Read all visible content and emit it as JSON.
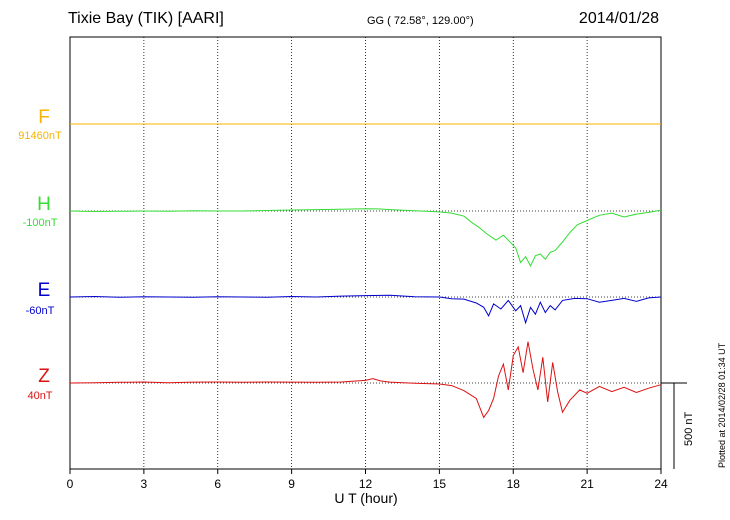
{
  "header": {
    "station": "Tixie Bay (TIK)  [AARI]",
    "coords": "GG ( 72.58°, 129.00°)",
    "date": "2014/01/28"
  },
  "plotted_note": "Plotted at 2014/02/28 01:34 UT",
  "chart_data": {
    "type": "line",
    "xlabel": "U T (hour)",
    "xlim": [
      0,
      24
    ],
    "xticks": [
      0,
      3,
      6,
      9,
      12,
      15,
      18,
      21,
      24
    ],
    "grid": true,
    "scale_bar": {
      "label": "500 nT",
      "value_nT": 500
    },
    "series": [
      {
        "name": "F",
        "baseline": "91460nT",
        "color": "#f5b400",
        "x": [
          0,
          6,
          12,
          18,
          24
        ],
        "y": [
          0,
          0,
          0,
          0,
          0
        ]
      },
      {
        "name": "H",
        "baseline": "-100nT",
        "color": "#33dd33",
        "x": [
          0,
          1,
          2,
          3,
          4,
          5,
          6,
          7,
          8,
          9,
          10,
          11,
          12,
          12.5,
          13,
          14,
          15,
          15.5,
          16,
          16.3,
          16.6,
          16.9,
          17.1,
          17.3,
          17.6,
          17.9,
          18.1,
          18.3,
          18.5,
          18.7,
          18.9,
          19.1,
          19.3,
          19.5,
          19.7,
          20,
          20.3,
          20.6,
          21,
          21.5,
          22,
          22.5,
          23,
          23.5,
          24
        ],
        "y": [
          0,
          -3,
          -2,
          0,
          -1,
          2,
          0,
          0,
          3,
          6,
          8,
          10,
          13,
          12,
          8,
          2,
          -5,
          -12,
          -30,
          -65,
          -95,
          -130,
          -150,
          -170,
          -140,
          -185,
          -215,
          -300,
          -265,
          -320,
          -260,
          -250,
          -280,
          -240,
          -230,
          -180,
          -125,
          -80,
          -55,
          -25,
          -12,
          -35,
          -18,
          -8,
          5
        ]
      },
      {
        "name": "E",
        "baseline": "-60nT",
        "color": "#0000cc",
        "x": [
          0,
          1,
          2,
          3,
          4,
          5,
          6,
          7,
          8,
          9,
          10,
          11,
          12,
          13,
          14,
          15,
          15.5,
          16,
          16.5,
          16.8,
          17,
          17.2,
          17.5,
          17.8,
          18.1,
          18.3,
          18.5,
          18.7,
          18.9,
          19.1,
          19.3,
          19.5,
          19.7,
          20,
          20.5,
          21,
          21.5,
          22,
          22.5,
          23,
          23.5,
          24
        ],
        "y": [
          0,
          3,
          -2,
          2,
          0,
          -2,
          2,
          0,
          -2,
          3,
          0,
          5,
          8,
          10,
          2,
          0,
          -10,
          -12,
          -35,
          -60,
          -110,
          -40,
          -70,
          -20,
          -80,
          -50,
          -150,
          -60,
          -100,
          -30,
          -90,
          -50,
          -75,
          -20,
          -8,
          -10,
          -30,
          -20,
          -8,
          -25,
          -5,
          0
        ]
      },
      {
        "name": "Z",
        "baseline": "40nT",
        "color": "#dd1111",
        "x": [
          0,
          1,
          2,
          3,
          4,
          5,
          6,
          7,
          8,
          9,
          10,
          11,
          12,
          12.3,
          12.6,
          13,
          14,
          15,
          15.5,
          16,
          16.5,
          16.8,
          17,
          17.2,
          17.4,
          17.6,
          17.8,
          18,
          18.2,
          18.4,
          18.6,
          18.8,
          19,
          19.2,
          19.4,
          19.6,
          19.8,
          20,
          20.3,
          20.7,
          21,
          21.5,
          22,
          22.5,
          23,
          23.5,
          24
        ],
        "y": [
          0,
          2,
          4,
          6,
          2,
          5,
          6,
          4,
          6,
          5,
          4,
          6,
          15,
          25,
          12,
          5,
          -2,
          -6,
          -15,
          -45,
          -90,
          -200,
          -160,
          -90,
          40,
          110,
          -40,
          160,
          210,
          60,
          240,
          80,
          -40,
          150,
          -110,
          120,
          -50,
          -170,
          -100,
          -40,
          -60,
          -20,
          -50,
          -25,
          -55,
          -30,
          -10
        ]
      }
    ]
  }
}
